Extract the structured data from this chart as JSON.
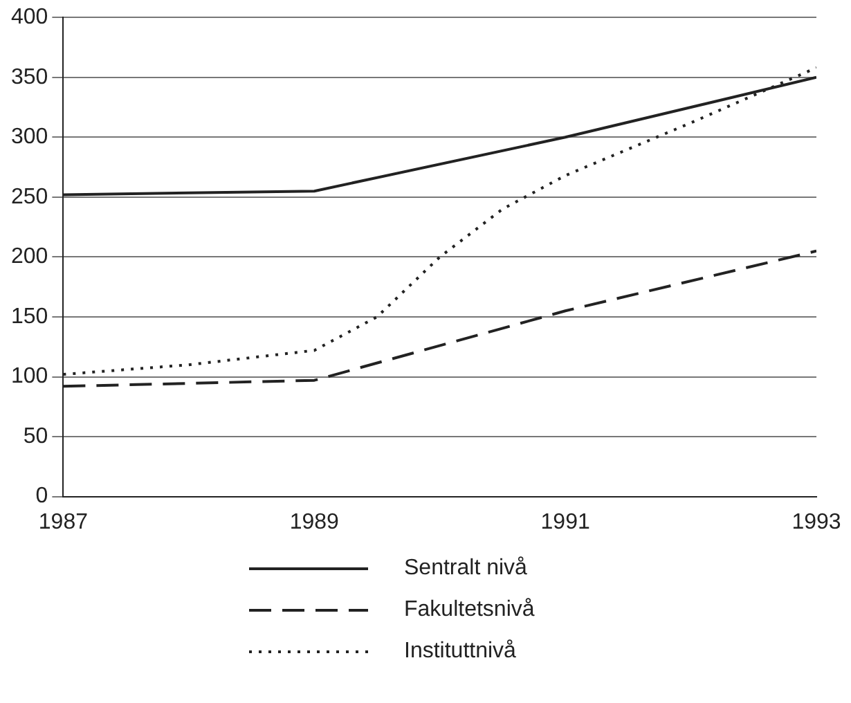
{
  "chart_data": {
    "type": "line",
    "xlim": [
      1987,
      1993
    ],
    "xticks": [
      1987,
      1989,
      1991,
      1993
    ],
    "ylim": [
      0,
      400
    ],
    "yticks": [
      0,
      50,
      100,
      150,
      200,
      250,
      300,
      350,
      400
    ],
    "grid": "y",
    "legend": "bottom",
    "marker": "none",
    "series": [
      {
        "name": "Sentralt nivå",
        "color": "#222222",
        "line_style": "solid",
        "x": [
          1987,
          1989,
          1991,
          1993
        ],
        "values": [
          252,
          255,
          300,
          350
        ]
      },
      {
        "name": "Fakultetsnivå",
        "color": "#222222",
        "line_style": "dashed",
        "x": [
          1987,
          1989,
          1991,
          1993
        ],
        "values": [
          92,
          97,
          155,
          205
        ]
      },
      {
        "name": "Instituttnivå",
        "color": "#222222",
        "line_style": "dotted",
        "x": [
          1987,
          1988,
          1989,
          1989.5,
          1990,
          1990.5,
          1991,
          1992,
          1993
        ],
        "values": [
          102,
          110,
          122,
          150,
          200,
          240,
          268,
          312,
          358
        ]
      }
    ]
  }
}
